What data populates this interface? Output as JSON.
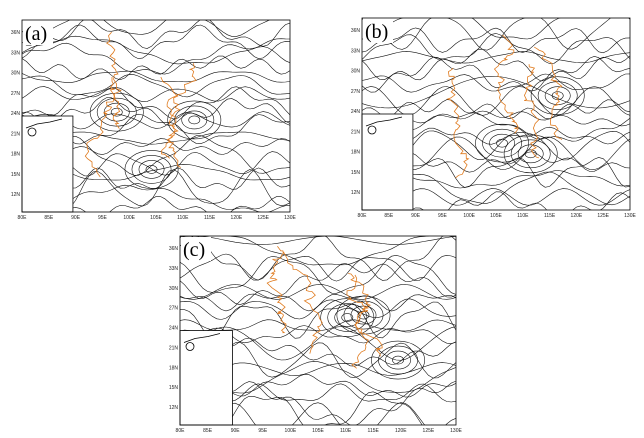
{
  "panels": [
    {
      "label": "(a)"
    },
    {
      "label": "(b)"
    },
    {
      "label": "(c)"
    }
  ],
  "lat_ticks": [
    "12N",
    "15N",
    "18N",
    "21N",
    "24N",
    "27N",
    "30N",
    "33N",
    "36N"
  ],
  "lon_ticks": [
    "80E",
    "85E",
    "90E",
    "95E",
    "100E",
    "105E",
    "110E",
    "115E",
    "120E",
    "125E",
    "130E"
  ]
}
